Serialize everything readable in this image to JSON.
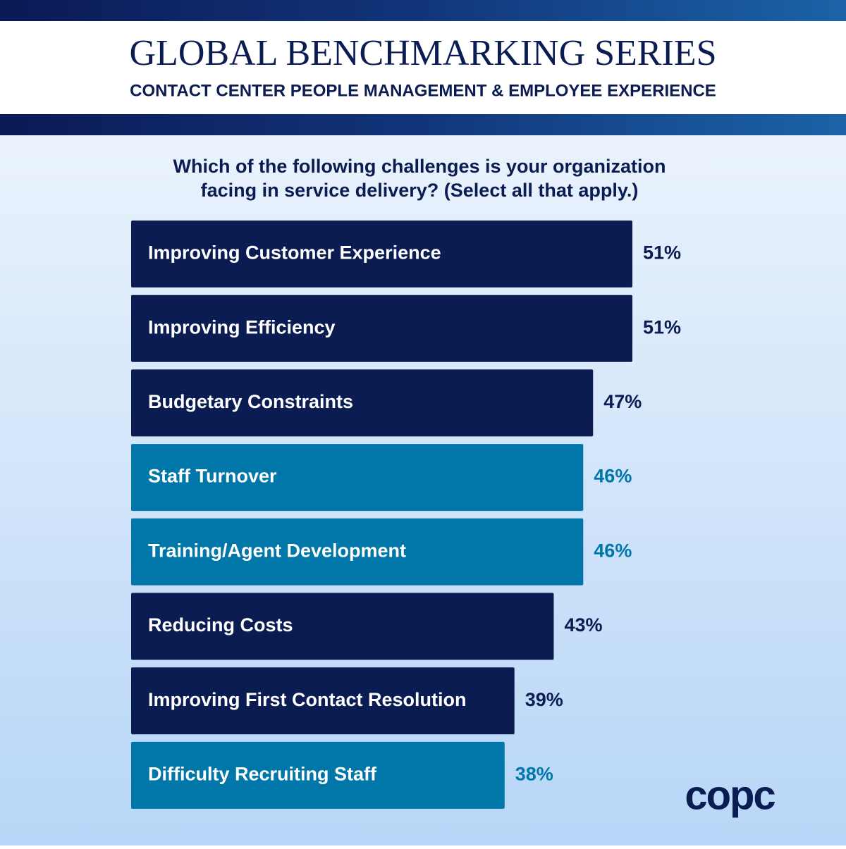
{
  "header": {
    "title": "GLOBAL BENCHMARKING SERIES",
    "subtitle": "CONTACT CENTER PEOPLE MANAGEMENT & EMPLOYEE EXPERIENCE"
  },
  "chart_data": {
    "type": "bar",
    "orientation": "horizontal",
    "title": [
      "Which of the following challenges is your organization",
      "facing in service delivery? (Select all that apply.)"
    ],
    "categories": [
      "Improving Customer Experience",
      "Improving Efficiency",
      "Budgetary Constraints",
      "Staff Turnover",
      "Training/Agent Development",
      "Reducing Costs",
      "Improving First Contact Resolution",
      "Difficulty Recruiting Staff"
    ],
    "values": [
      51,
      51,
      47,
      46,
      46,
      43,
      39,
      38
    ],
    "value_labels": [
      "51%",
      "51%",
      "47%",
      "46%",
      "46%",
      "43%",
      "39%",
      "38%"
    ],
    "colors": [
      "#0b1c52",
      "#0b1c52",
      "#0b1c52",
      "#0077a8",
      "#0077a8",
      "#0b1c52",
      "#0b1c52",
      "#0077a8"
    ]
  },
  "logo": "copc"
}
